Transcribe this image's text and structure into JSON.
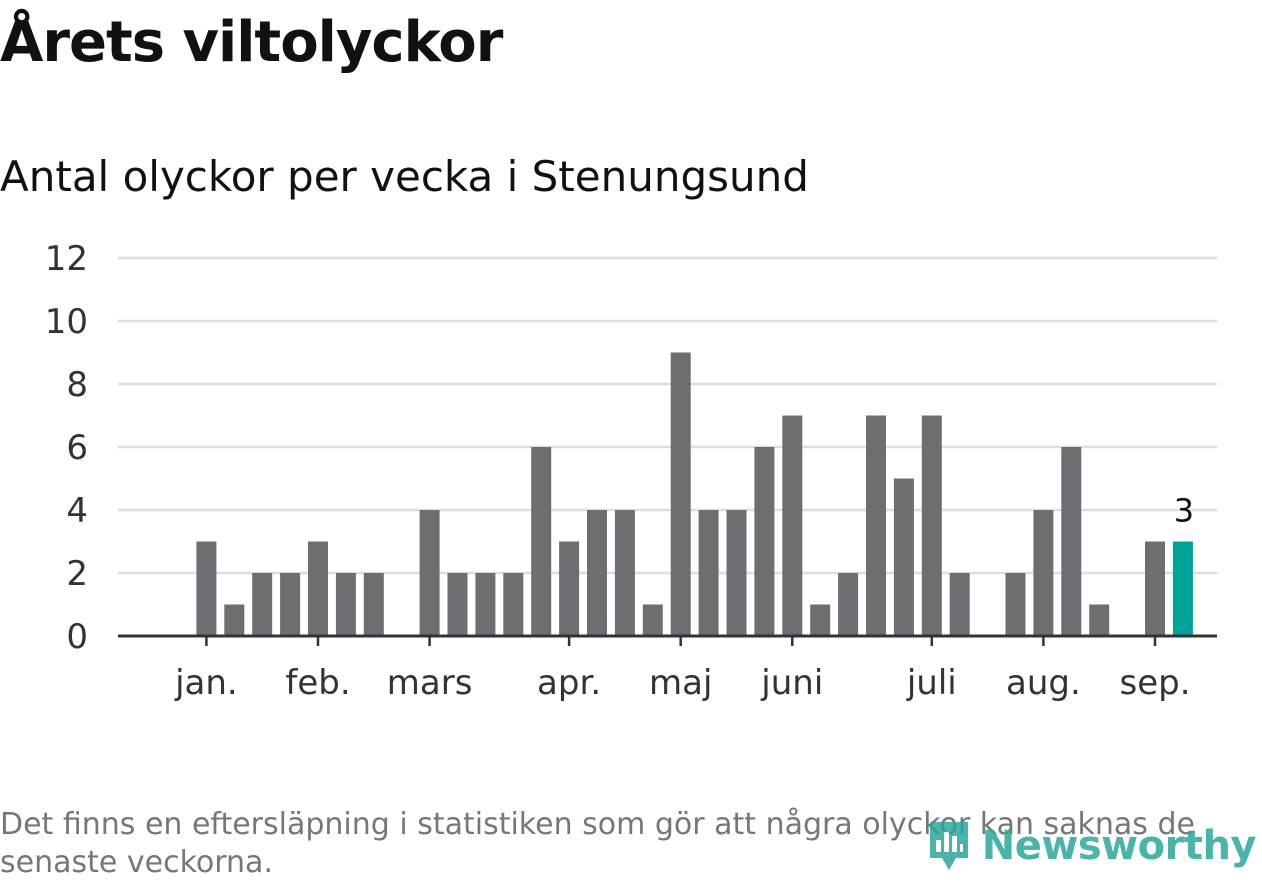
{
  "title": "Årets viltolyckor",
  "subtitle": "Antal olyckor per vecka i Stenungsund",
  "footnote": "Det finns en eftersläpning i statistiken som gör att några olyckor kan saknas de senaste veckorna.",
  "brand": {
    "name": "Newsworthy",
    "color": "#2aa79b",
    "icon": "bar-chart-pin-icon"
  },
  "chart_data": {
    "type": "bar",
    "values": [
      0,
      3,
      1,
      2,
      2,
      3,
      2,
      2,
      0,
      4,
      2,
      2,
      2,
      6,
      3,
      4,
      4,
      1,
      9,
      4,
      4,
      6,
      7,
      1,
      2,
      7,
      5,
      7,
      2,
      0,
      2,
      4,
      6,
      1,
      0,
      3,
      3
    ],
    "month_labels": [
      {
        "label": "jan.",
        "bar": 1
      },
      {
        "label": "feb.",
        "bar": 5
      },
      {
        "label": "mars",
        "bar": 9
      },
      {
        "label": "apr.",
        "bar": 14
      },
      {
        "label": "maj",
        "bar": 18
      },
      {
        "label": "juni",
        "bar": 22
      },
      {
        "label": "juli",
        "bar": 27
      },
      {
        "label": "aug.",
        "bar": 31
      },
      {
        "label": "sep.",
        "bar": 35
      }
    ],
    "yticks": [
      0,
      2,
      4,
      6,
      8,
      10,
      12
    ],
    "ylim": [
      0,
      12
    ],
    "grid": true,
    "highlight_index": 36,
    "highlight_label": "3",
    "colors": {
      "bar": "#6e6d72",
      "highlight": "#00a397",
      "grid": "#dddddd",
      "axis": "#333333"
    }
  }
}
